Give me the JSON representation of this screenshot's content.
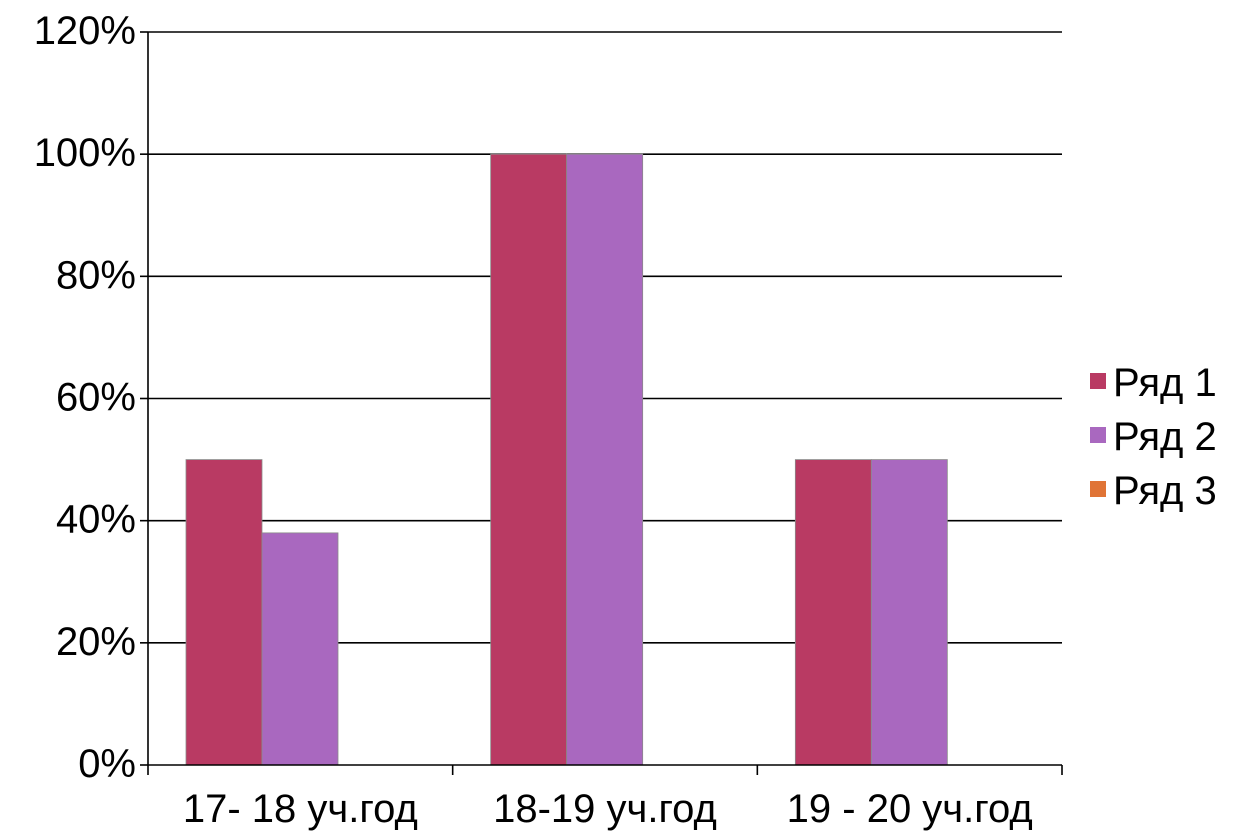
{
  "chart_data": {
    "type": "bar",
    "title": "",
    "xlabel": "",
    "ylabel": "",
    "categories": [
      "17- 18 уч.год",
      "18-19 уч.год",
      "19 - 20 уч.год"
    ],
    "series": [
      {
        "name": "Ряд 1",
        "values": [
          0.5,
          1.0,
          0.5
        ],
        "color": "#B93A63"
      },
      {
        "name": "Ряд 2",
        "values": [
          0.38,
          1.0,
          0.5
        ],
        "color": "#A968BF"
      },
      {
        "name": "Ряд 3",
        "values": [
          0,
          0,
          0
        ],
        "color": "#E07436"
      }
    ],
    "ylim": [
      0,
      1.2
    ],
    "yticks": [
      0,
      0.2,
      0.4,
      0.6,
      0.8,
      1.0,
      1.2
    ],
    "ytick_labels": [
      "0%",
      "20%",
      "40%",
      "60%",
      "80%",
      "100%",
      "120%"
    ],
    "grid": "horizontal",
    "legend_position": "right"
  }
}
